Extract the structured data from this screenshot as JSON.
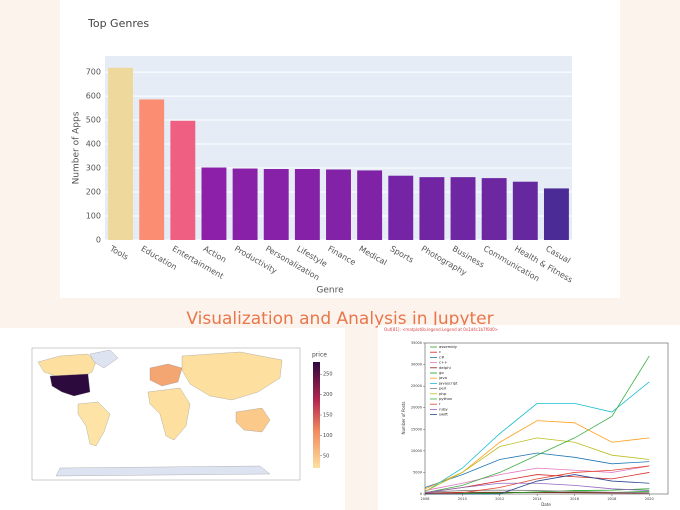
{
  "heading": "Visualization and Analysis in Jupyter",
  "chart_data": [
    {
      "type": "bar",
      "title": "Top Genres",
      "xlabel": "Genre",
      "ylabel": "Number of Apps",
      "categories": [
        "Tools",
        "Education",
        "Entertainment",
        "Action",
        "Productivity",
        "Personalization",
        "Lifestyle",
        "Finance",
        "Medical",
        "Sports",
        "Photography",
        "Business",
        "Communication",
        "Health & Fitness",
        "Casual"
      ],
      "values": [
        718,
        586,
        497,
        302,
        298,
        296,
        296,
        294,
        290,
        268,
        262,
        262,
        258,
        243,
        215
      ],
      "colors": [
        "#efd89b",
        "#fa8d72",
        "#ef5f82",
        "#8d20a8",
        "#8920a8",
        "#8721a7",
        "#8521a7",
        "#8222a6",
        "#7f22a5",
        "#7424a4",
        "#7125a3",
        "#6f26a2",
        "#6c27a1",
        "#65289f",
        "#4b2b95"
      ],
      "ylim": [
        0,
        767
      ],
      "yticks": [
        0,
        100,
        200,
        300,
        400,
        500,
        600,
        700
      ],
      "grid": true
    },
    {
      "type": "choropleth",
      "colorbar_title": "price",
      "clim": [
        20,
        280
      ],
      "cticks": [
        50,
        100,
        150,
        200,
        250
      ]
    },
    {
      "type": "line",
      "annotation": "Out[81]: <matplotlib.legend.Legend at 0x1d4c1b7f0d0>",
      "xlabel": "Date",
      "ylabel": "Number of Posts",
      "x": [
        2008,
        2010,
        2012,
        2014,
        2016,
        2018,
        2020
      ],
      "xlim": [
        2008,
        2021
      ],
      "xticks": [
        2008,
        2010,
        2012,
        2014,
        2016,
        2018,
        2020
      ],
      "ylim": [
        0,
        35000
      ],
      "yticks": [
        0,
        5000,
        10000,
        15000,
        20000,
        25000,
        30000,
        35000
      ],
      "series": [
        {
          "name": "assembly",
          "color": "#2ca02c",
          "values": [
            50,
            200,
            300,
            400,
            400,
            350,
            600
          ]
        },
        {
          "name": "c",
          "color": "#d62728",
          "values": [
            300,
            1500,
            3000,
            4500,
            4000,
            3500,
            5000
          ]
        },
        {
          "name": "c#",
          "color": "#1f77b4",
          "values": [
            1500,
            4500,
            8000,
            9500,
            8500,
            7000,
            7500
          ]
        },
        {
          "name": "c++",
          "color": "#e377c2",
          "values": [
            800,
            2500,
            4500,
            6000,
            5500,
            5000,
            6500
          ]
        },
        {
          "name": "delphi",
          "color": "#8c1c1c",
          "values": [
            200,
            400,
            400,
            350,
            300,
            250,
            200
          ]
        },
        {
          "name": "go",
          "color": "#17a317",
          "values": [
            0,
            50,
            200,
            500,
            800,
            900,
            1200
          ]
        },
        {
          "name": "java",
          "color": "#ff9f1a",
          "values": [
            1200,
            5000,
            12000,
            17000,
            16500,
            12000,
            13000
          ]
        },
        {
          "name": "javascript",
          "color": "#17becf",
          "values": [
            500,
            6000,
            14000,
            21000,
            21000,
            19000,
            26000
          ]
        },
        {
          "name": "perl",
          "color": "#7f7f7f",
          "values": [
            400,
            800,
            900,
            800,
            600,
            400,
            300
          ]
        },
        {
          "name": "php",
          "color": "#bcbd22",
          "values": [
            600,
            5000,
            11000,
            13000,
            12000,
            9000,
            8000
          ]
        },
        {
          "name": "python",
          "color": "#3cb044",
          "values": [
            300,
            2000,
            5000,
            9000,
            13000,
            18000,
            32000
          ]
        },
        {
          "name": "r",
          "color": "#e0452f",
          "values": [
            0,
            300,
            1500,
            3500,
            5000,
            5500,
            6500
          ]
        },
        {
          "name": "ruby",
          "color": "#9467bd",
          "values": [
            300,
            1500,
            2500,
            2500,
            2000,
            1200,
            800
          ]
        },
        {
          "name": "swift",
          "color": "#2a4a8f",
          "values": [
            0,
            0,
            0,
            3000,
            4500,
            3000,
            2500
          ]
        }
      ]
    }
  ]
}
